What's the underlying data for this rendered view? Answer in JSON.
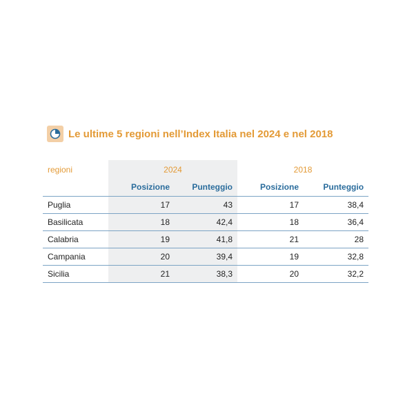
{
  "title": "Le ultime 5 regioni nell’Index Italia nel 2024 e nel 2018",
  "colors": {
    "title": "#e39a36",
    "header_blue": "#2a6c9c",
    "shade": "#eeeff0",
    "rule": "#7ba3c4",
    "icon_bg": "#f3cfa6"
  },
  "icon": "pie-chart-icon",
  "chart_data": {
    "type": "table",
    "title": "Le ultime 5 regioni nell’Index Italia nel 2024 e nel 2018",
    "row_header": "regioni",
    "years": [
      "2024",
      "2018"
    ],
    "subheaders": [
      "Posizione",
      "Punteggio"
    ],
    "rows": [
      {
        "regione": "Puglia",
        "pos_2024": "17",
        "score_2024": "43",
        "pos_2018": "17",
        "score_2018": "38,4"
      },
      {
        "regione": "Basilicata",
        "pos_2024": "18",
        "score_2024": "42,4",
        "pos_2018": "18",
        "score_2018": "36,4"
      },
      {
        "regione": "Calabria",
        "pos_2024": "19",
        "score_2024": "41,8",
        "pos_2018": "21",
        "score_2018": "28"
      },
      {
        "regione": "Campania",
        "pos_2024": "20",
        "score_2024": "39,4",
        "pos_2018": "19",
        "score_2018": "32,8"
      },
      {
        "regione": "Sicilia",
        "pos_2024": "21",
        "score_2024": "38,3",
        "pos_2018": "20",
        "score_2018": "32,2"
      }
    ]
  }
}
